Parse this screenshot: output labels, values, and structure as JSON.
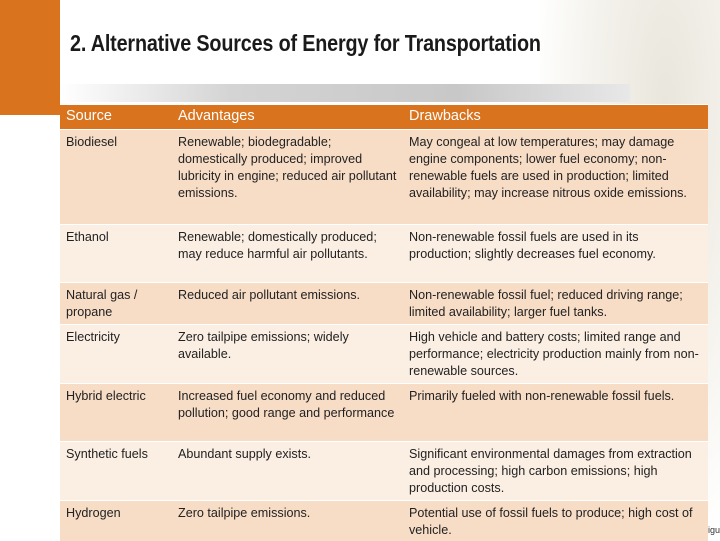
{
  "title": "2. Alternative Sources of Energy for Transportation",
  "table": {
    "header": [
      "Source",
      "Advantages",
      "Drawbacks"
    ],
    "rows": [
      [
        "Biodiesel",
        "Renewable; biodegradable; domestically produced; improved lubricity in engine; reduced air pollutant emissions.",
        "May congeal at low temperatures; may damage engine components; lower fuel economy; non- renewable fuels are used in production; limited availability; may increase nitrous oxide emissions."
      ],
      [
        "Ethanol",
        "Renewable; domestically produced; may reduce harmful air pollutants.",
        "Non-renewable fossil fuels are used in its production; slightly decreases fuel economy."
      ],
      [
        "Natural gas / propane",
        "Reduced air pollutant emissions.",
        "Non-renewable fossil fuel; reduced driving range; limited availability; larger fuel tanks."
      ],
      [
        "Electricity",
        "Zero tailpipe emissions; widely available.",
        "High vehicle and battery costs; limited range and performance; electricity production mainly from non-renewable sources."
      ],
      [
        "Hybrid electric",
        "Increased fuel economy and reduced pollution; good range and performance",
        "Primarily fueled with non-renewable fossil fuels."
      ],
      [
        "Synthetic fuels",
        "Abundant supply exists.",
        "Significant environmental damages from extraction and processing; high carbon emissions; high production costs."
      ],
      [
        "Hydrogen",
        "Zero tailpipe emissions.",
        "Potential use of fossil fuels to produce; high cost of vehicle."
      ]
    ]
  },
  "footer": "igu"
}
